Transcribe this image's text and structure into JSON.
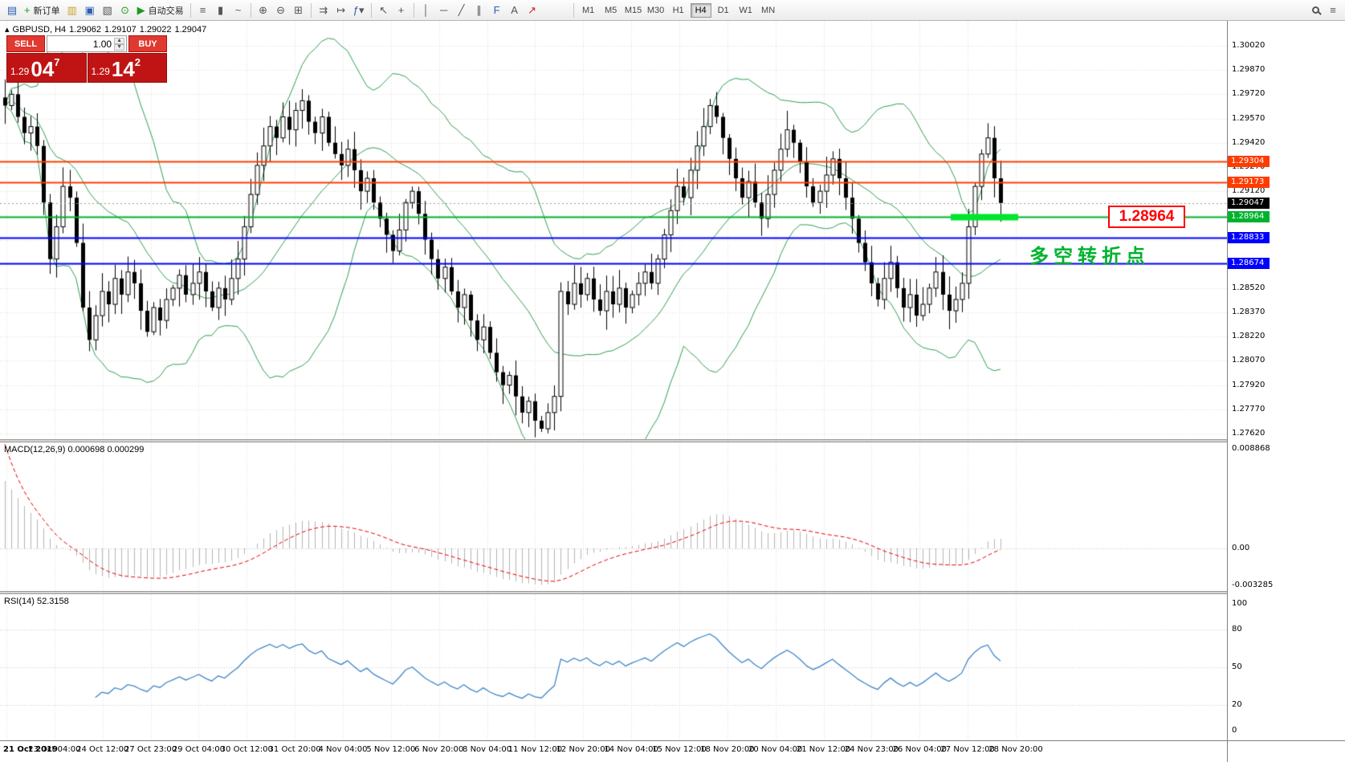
{
  "toolbar": {
    "new_order_label": "新订单",
    "autotrading_label": "自动交易",
    "timeframes": [
      "M1",
      "M5",
      "M15",
      "M30",
      "H1",
      "H4",
      "D1",
      "W1",
      "MN"
    ],
    "active_timeframe": "H4",
    "icons": {
      "chart_window": "▤",
      "new_order_plus": "+",
      "market_watch": "▥",
      "data_window": "▣",
      "navigator": "▧",
      "refresh": "⊙",
      "autotrading_play": "▶",
      "bars": "≡",
      "candles": "▮",
      "line_chart": "~",
      "zoom_in": "⊕",
      "zoom_out": "⊖",
      "tile_windows": "⊞",
      "auto_scroll": "⇉",
      "chart_shift": "↦",
      "indicators": "ƒ",
      "cursor": "↖",
      "crosshair": "+",
      "vertical_line": "│",
      "horizontal_line": "─",
      "trendline": "╱",
      "channel": "∥",
      "fibonacci": "F",
      "text_tool": "A",
      "arrow_tool": "↗",
      "dropdown": "▾",
      "collapse": "▴",
      "lot_up": "▲",
      "lot_down": "▼"
    }
  },
  "chart": {
    "symbol_tf": "GBPUSD, H4",
    "ohlc": {
      "o": "1.29062",
      "h": "1.29107",
      "l": "1.29022",
      "c": "1.29047"
    },
    "trade_panel": {
      "sell_label": "SELL",
      "buy_label": "BUY",
      "lot": "1.00",
      "sell_prefix": "1.29",
      "sell_main": "04",
      "sell_sup": "7",
      "buy_prefix": "1.29",
      "buy_main": "14",
      "buy_sup": "2"
    },
    "hlines": [
      {
        "price": 1.29304,
        "label": "1.29304",
        "color": "#ff3c00"
      },
      {
        "price": 1.29173,
        "label": "1.29173",
        "color": "#ff3c00"
      },
      {
        "price": 1.28964,
        "label": "1.28964",
        "color": "#00b22d",
        "thick": true
      },
      {
        "price": 1.28833,
        "label": "1.28833",
        "color": "#0000ff"
      },
      {
        "price": 1.28674,
        "label": "1.28674",
        "color": "#0000ff"
      }
    ],
    "current_price": {
      "price": 1.29047,
      "label": "1.29047",
      "color": "#000000"
    },
    "annotation": {
      "box_label": "1.28964",
      "note_text": "多空转折点",
      "note_color": "#00b22d",
      "box_color": "#ff0000"
    },
    "price_axis": [
      "1.30020",
      "1.29870",
      "1.29720",
      "1.29570",
      "1.29420",
      "1.29270",
      "1.29120",
      "1.28970",
      "1.28820",
      "1.28670",
      "1.28520",
      "1.28370",
      "1.28220",
      "1.28070",
      "1.27920",
      "1.27770",
      "1.27620"
    ],
    "macd_label": {
      "name": "MACD(12,26,9)",
      "v1": "0.000698",
      "v2": "0.000299"
    },
    "macd_scale": [
      {
        "label": "0.008868",
        "value": 0.008868
      },
      {
        "label": "0.00",
        "value": 0
      },
      {
        "label": "-0.003285",
        "value": -0.003285
      }
    ],
    "rsi_label": {
      "name": "RSI(14)",
      "value": "52.3158"
    },
    "rsi_scale": [
      {
        "label": "100",
        "value": 100
      },
      {
        "label": "80",
        "value": 80
      },
      {
        "label": "50",
        "value": 50
      },
      {
        "label": "20",
        "value": 20
      },
      {
        "label": "0",
        "value": 0
      }
    ]
  },
  "chart_data": {
    "type": "candlestick",
    "symbol": "GBPUSD",
    "timeframe": "H4",
    "title": "GBPUSD,H4",
    "y_axis": {
      "min": 1.2762,
      "max": 1.3002,
      "step": 0.0015
    },
    "last_ohlc": {
      "open": 1.29062,
      "high": 1.29107,
      "low": 1.29022,
      "close": 1.29047
    },
    "first_open": 1.297,
    "closes": [
      1.2965,
      1.2972,
      1.2958,
      1.2948,
      1.2952,
      1.294,
      1.2905,
      1.287,
      1.289,
      1.2915,
      1.2908,
      1.288,
      1.284,
      1.282,
      1.2835,
      1.285,
      1.2842,
      1.2858,
      1.2848,
      1.2862,
      1.2855,
      1.2838,
      1.2825,
      1.284,
      1.2832,
      1.2845,
      1.2852,
      1.286,
      1.2848,
      1.2855,
      1.2862,
      1.285,
      1.284,
      1.2852,
      1.2845,
      1.2858,
      1.287,
      1.289,
      1.291,
      1.2928,
      1.294,
      1.2952,
      1.2945,
      1.2958,
      1.295,
      1.2962,
      1.2968,
      1.2955,
      1.2948,
      1.2958,
      1.2942,
      1.2935,
      1.2928,
      1.2938,
      1.2925,
      1.2912,
      1.292,
      1.2905,
      1.2895,
      1.2885,
      1.2875,
      1.2888,
      1.2905,
      1.2912,
      1.2898,
      1.2882,
      1.287,
      1.2858,
      1.2865,
      1.285,
      1.284,
      1.2848,
      1.2832,
      1.282,
      1.2828,
      1.2812,
      1.28,
      1.2792,
      1.2798,
      1.2785,
      1.2775,
      1.2782,
      1.277,
      1.2765,
      1.2775,
      1.2785,
      1.285,
      1.2842,
      1.2855,
      1.2848,
      1.2858,
      1.2845,
      1.2838,
      1.285,
      1.2842,
      1.2852,
      1.284,
      1.2848,
      1.2855,
      1.2862,
      1.2855,
      1.287,
      1.2885,
      1.29,
      1.2915,
      1.2908,
      1.2925,
      1.294,
      1.2952,
      1.2965,
      1.2958,
      1.2945,
      1.2932,
      1.292,
      1.2908,
      1.2918,
      1.2905,
      1.2895,
      1.291,
      1.2925,
      1.2938,
      1.295,
      1.2942,
      1.293,
      1.2915,
      1.2905,
      1.2912,
      1.2922,
      1.2932,
      1.292,
      1.2908,
      1.2895,
      1.288,
      1.2868,
      1.2855,
      1.2845,
      1.2858,
      1.2868,
      1.2852,
      1.284,
      1.2848,
      1.2835,
      1.2842,
      1.2852,
      1.2862,
      1.2848,
      1.2838,
      1.2845,
      1.2855,
      1.289,
      1.2915,
      1.2935,
      1.2945,
      1.292,
      1.29047
    ],
    "indicators": {
      "bollinger": {
        "period": 20,
        "deviation": 2,
        "color": "#2e9e4f"
      },
      "macd": {
        "fast": 12,
        "slow": 26,
        "signal": 9,
        "current_macd": 0.000698,
        "current_signal": 0.000299,
        "histogram_color": "#b4b4b4",
        "signal_color": "#e60000"
      },
      "rsi": {
        "period": 14,
        "current": 52.3158,
        "color": "#3f86c8",
        "levels": [
          80,
          50,
          20
        ]
      }
    },
    "x_labels": [
      "21 Oct 2019",
      "23 Oct 04:00",
      "24 Oct 12:00",
      "27 Oct 23:00",
      "29 Oct 04:00",
      "30 Oct 12:00",
      "31 Oct 20:00",
      "4 Nov 04:00",
      "5 Nov 12:00",
      "6 Nov 20:00",
      "8 Nov 04:00",
      "11 Nov 12:00",
      "12 Nov 20:00",
      "14 Nov 04:00",
      "15 Nov 12:00",
      "18 Nov 20:00",
      "20 Nov 04:00",
      "21 Nov 12:00",
      "24 Nov 23:00",
      "26 Nov 04:00",
      "27 Nov 12:00",
      "28 Nov 20:00"
    ]
  }
}
